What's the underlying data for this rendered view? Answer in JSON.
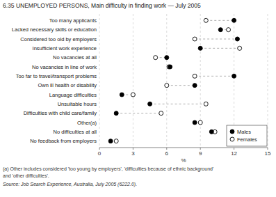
{
  "chart_data": {
    "type": "dot",
    "title": "6.35  UNEMPLOYED PERSONS, Main difficulty in finding work — July 2005",
    "categories": [
      "Too many applicants",
      "Lacked necessary skills or education",
      "Considered too old by employers",
      "Insufficient work experience",
      "No vacancies at all",
      "No vacancies in line of work",
      "Too far to travel/transport problems",
      "Own ill health or disability",
      "Language difficulties",
      "Unsuitable hours",
      "Difficulties with child care/family",
      "Other(a)",
      "No difficulties at all",
      "No feedback from employers"
    ],
    "series": [
      {
        "name": "Males",
        "color": "#000000",
        "marker": "filled",
        "values": [
          12.0,
          10.8,
          12.3,
          9.0,
          6.0,
          6.3,
          12.0,
          8.5,
          2.0,
          4.5,
          1.5,
          8.5,
          10.0,
          1.0
        ]
      },
      {
        "name": "Females",
        "color": "#000000",
        "marker": "open",
        "values": [
          9.5,
          11.5,
          8.5,
          12.5,
          5.0,
          6.2,
          8.5,
          6.0,
          3.0,
          9.5,
          5.5,
          9.0,
          10.3,
          1.5
        ]
      }
    ],
    "orientation": "horizontal",
    "xlabel": "%",
    "xlim": [
      0,
      15
    ],
    "xticks": [
      0,
      3,
      6,
      9,
      12,
      15
    ],
    "grid": true,
    "legend": "lower right",
    "footnotes": [
      "(a) Other includes considered 'too young by employers', 'difficulties because of ethnic background'",
      "and 'other difficulties'."
    ],
    "source": "Source: Job Search Experience, Australia, July 2005 (6222.0)."
  }
}
